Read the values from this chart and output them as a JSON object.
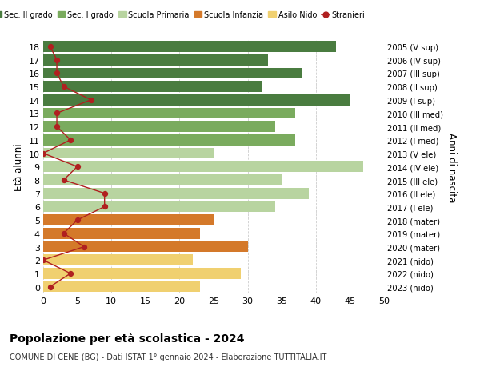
{
  "ages": [
    18,
    17,
    16,
    15,
    14,
    13,
    12,
    11,
    10,
    9,
    8,
    7,
    6,
    5,
    4,
    3,
    2,
    1,
    0
  ],
  "bar_values": [
    43,
    33,
    38,
    32,
    45,
    37,
    34,
    37,
    25,
    47,
    35,
    39,
    34,
    25,
    23,
    30,
    22,
    29,
    23
  ],
  "stranieri": [
    1,
    2,
    2,
    3,
    7,
    2,
    2,
    4,
    0,
    5,
    3,
    9,
    9,
    5,
    3,
    6,
    0,
    4,
    1
  ],
  "right_labels": [
    "2005 (V sup)",
    "2006 (IV sup)",
    "2007 (III sup)",
    "2008 (II sup)",
    "2009 (I sup)",
    "2010 (III med)",
    "2011 (II med)",
    "2012 (I med)",
    "2013 (V ele)",
    "2014 (IV ele)",
    "2015 (III ele)",
    "2016 (II ele)",
    "2017 (I ele)",
    "2018 (mater)",
    "2019 (mater)",
    "2020 (mater)",
    "2021 (nido)",
    "2022 (nido)",
    "2023 (nido)"
  ],
  "bar_colors": [
    "#4a7c40",
    "#4a7c40",
    "#4a7c40",
    "#4a7c40",
    "#4a7c40",
    "#7aab5e",
    "#7aab5e",
    "#7aab5e",
    "#b8d4a0",
    "#b8d4a0",
    "#b8d4a0",
    "#b8d4a0",
    "#b8d4a0",
    "#d4792a",
    "#d4792a",
    "#d4792a",
    "#f0d070",
    "#f0d070",
    "#f0d070"
  ],
  "legend_labels": [
    "Sec. II grado",
    "Sec. I grado",
    "Scuola Primaria",
    "Scuola Infanzia",
    "Asilo Nido",
    "Stranieri"
  ],
  "legend_colors": [
    "#4a7c40",
    "#7aab5e",
    "#b8d4a0",
    "#d4792a",
    "#f0d070",
    "#b02020"
  ],
  "stranieri_color": "#b02020",
  "title": "Popolazione per età scolastica - 2024",
  "subtitle": "COMUNE DI CENE (BG) - Dati ISTAT 1° gennaio 2024 - Elaborazione TUTTITALIA.IT",
  "ylabel_left": "Età alunni",
  "ylabel_right": "Anni di nascita",
  "xlim": [
    0,
    50
  ],
  "xticks": [
    0,
    5,
    10,
    15,
    20,
    25,
    30,
    35,
    40,
    45,
    50
  ],
  "background_color": "#ffffff",
  "grid_color": "#cccccc"
}
